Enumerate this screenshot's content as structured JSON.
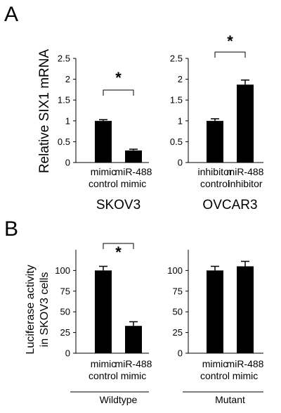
{
  "figure": {
    "panel_a_letter": "A",
    "panel_b_letter": "B",
    "panel_a_ylabel": "Relative SIX1 mRNA",
    "panel_b_ylabel_line1": "Luciferase activity",
    "panel_b_ylabel_line2": "in SKOV3 cells"
  },
  "chart_data": [
    {
      "type": "bar",
      "panel": "A",
      "group": "SKOV3",
      "categories": [
        [
          "mimic",
          "control"
        ],
        [
          "miR-488",
          "mimic"
        ]
      ],
      "values": [
        1.0,
        0.29
      ],
      "errors": [
        0.03,
        0.03
      ],
      "ylim": [
        0,
        2.5
      ],
      "yticks": [
        "0",
        "0.5",
        "1",
        "1.5",
        "2",
        "2.5"
      ],
      "significance": "*"
    },
    {
      "type": "bar",
      "panel": "A",
      "group": "OVCAR3",
      "categories": [
        [
          "inhibitor",
          "control"
        ],
        [
          "miR-488",
          "inhibitor"
        ]
      ],
      "values": [
        1.0,
        1.87
      ],
      "errors": [
        0.05,
        0.11
      ],
      "ylim": [
        0,
        2.5
      ],
      "yticks": [
        "0",
        "0.5",
        "1",
        "1.5",
        "2",
        "2.5"
      ],
      "significance": "*"
    },
    {
      "type": "bar",
      "panel": "B",
      "group": "Wildtype",
      "categories": [
        [
          "mimic",
          "control"
        ],
        [
          "miR-488",
          "mimic"
        ]
      ],
      "values": [
        100,
        33
      ],
      "errors": [
        5,
        5
      ],
      "ylim": [
        0,
        125
      ],
      "yticks": [
        "0",
        "25",
        "50",
        "75",
        "100"
      ],
      "significance": "*"
    },
    {
      "type": "bar",
      "panel": "B",
      "group": "Mutant",
      "categories": [
        [
          "mimic",
          "control"
        ],
        [
          "miR-488",
          "mimic"
        ]
      ],
      "values": [
        100,
        105
      ],
      "errors": [
        5,
        6
      ],
      "ylim": [
        0,
        125
      ],
      "yticks": [
        "0",
        "25",
        "50",
        "75",
        "100"
      ],
      "significance": ""
    }
  ]
}
